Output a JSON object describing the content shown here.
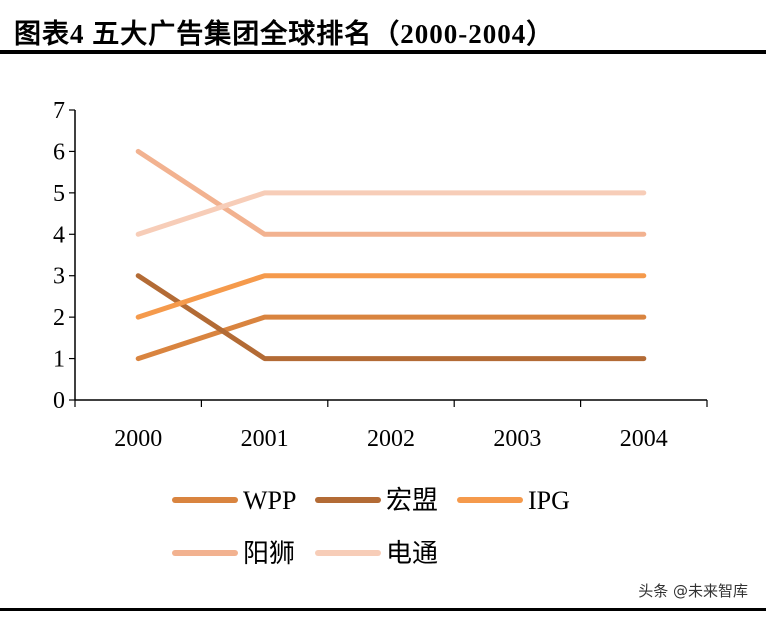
{
  "title": "图表4 五大广告集团全球排名（2000-2004）",
  "watermark": "头条 @未来智库",
  "chart_data": {
    "type": "line",
    "categories": [
      "2000",
      "2001",
      "2002",
      "2003",
      "2004"
    ],
    "ylim": [
      0,
      7
    ],
    "yticks": [
      0,
      1,
      2,
      3,
      4,
      5,
      6,
      7
    ],
    "grid": false,
    "legend_position": "bottom",
    "series": [
      {
        "name": "WPP",
        "values": [
          1,
          2,
          2,
          2,
          2
        ],
        "color": "#d9843f"
      },
      {
        "name": "宏盟",
        "values": [
          3,
          1,
          1,
          1,
          1
        ],
        "color": "#b36b35"
      },
      {
        "name": "IPG",
        "values": [
          2,
          3,
          3,
          3,
          3
        ],
        "color": "#f59a4c"
      },
      {
        "name": "阳狮",
        "values": [
          6,
          4,
          4,
          4,
          4
        ],
        "color": "#f2b290"
      },
      {
        "name": "电通",
        "values": [
          4,
          5,
          5,
          5,
          5
        ],
        "color": "#f7cdb8"
      }
    ]
  }
}
